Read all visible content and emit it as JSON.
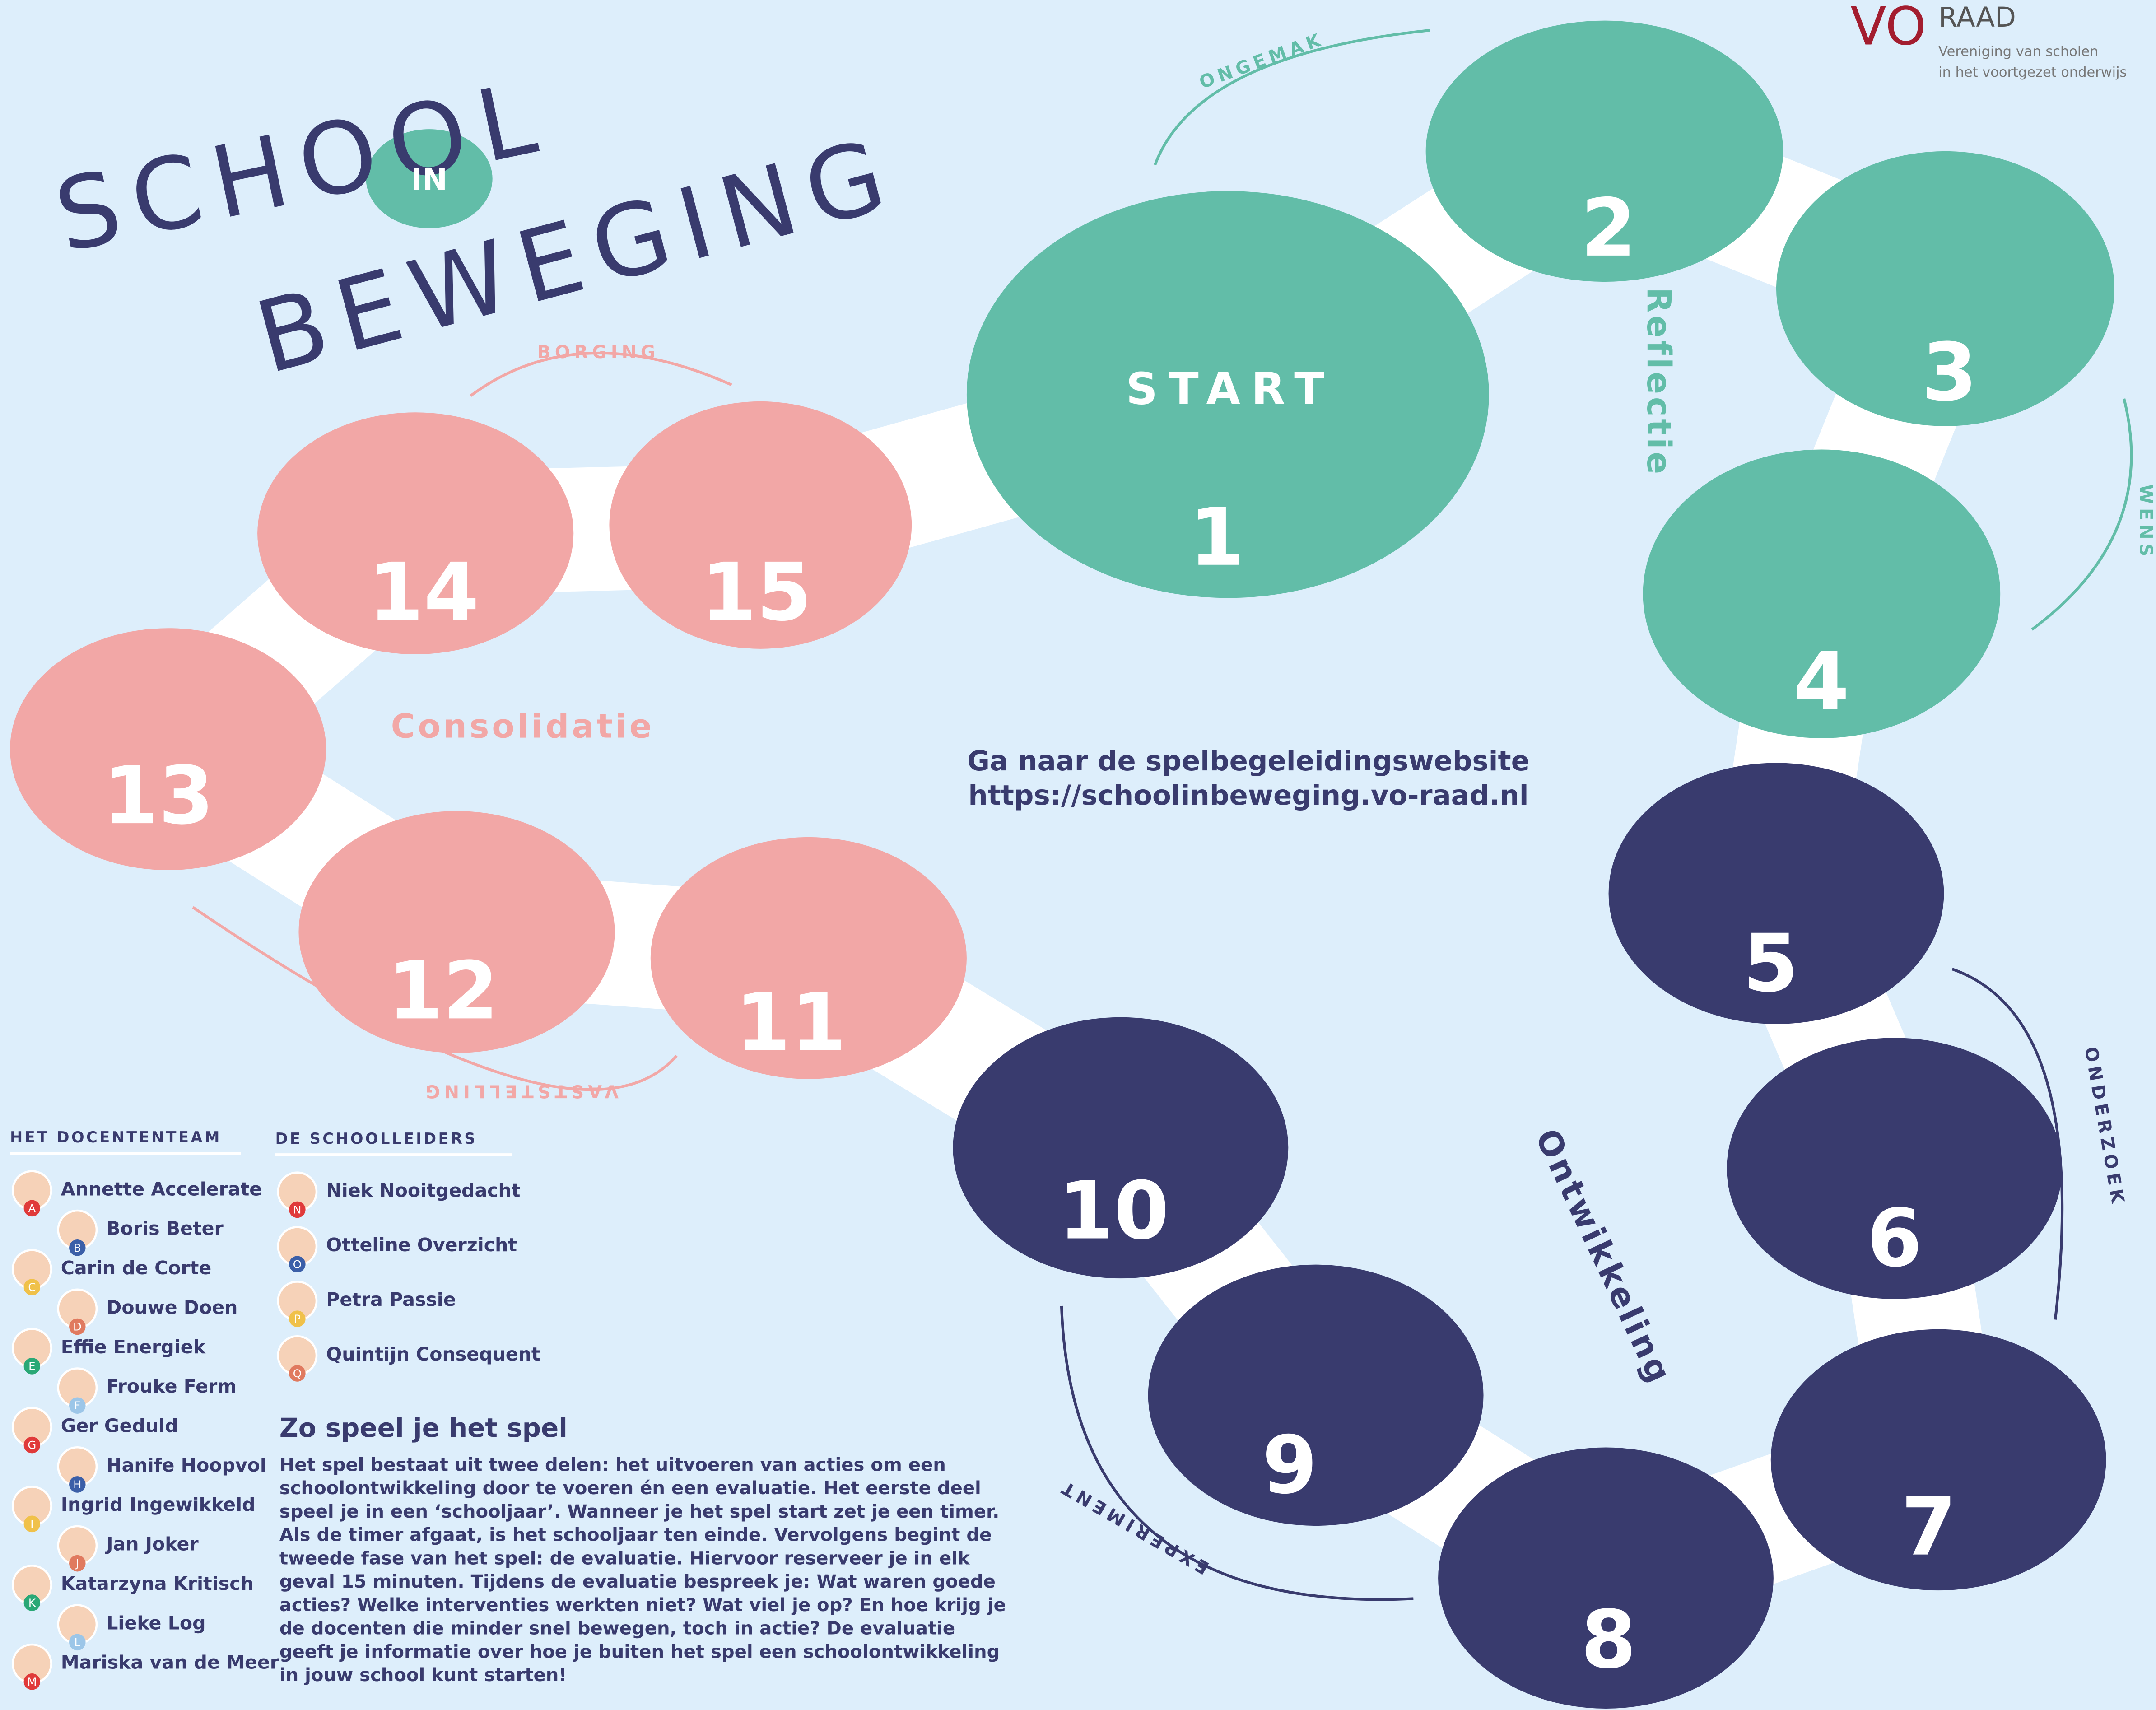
{
  "header": {
    "title_line1": "SCHOOL",
    "title_connector": "IN",
    "title_line2": "BEWEGING"
  },
  "logo": {
    "brand_vo": "VO",
    "brand_raad": "RAAD",
    "tagline_1": "Vereniging van scholen",
    "tagline_2": "in het voortgezet onderwijs"
  },
  "board": {
    "start_label": "START",
    "squares": [
      1,
      2,
      3,
      4,
      5,
      6,
      7,
      8,
      9,
      10,
      11,
      12,
      13,
      14,
      15
    ],
    "phases": [
      "Reflectie",
      "Ontwikkeling",
      "Consolidatie"
    ],
    "steps": [
      "ONGEMAK",
      "WENS",
      "ONDERZOEK",
      "EXPERIMENT",
      "VASTSTELLING",
      "BORGING"
    ]
  },
  "website": {
    "line1": "Ga naar de spelbegeleidingswebsite",
    "line2": "https://schoolinbeweging.vo-raad.nl"
  },
  "teachers": {
    "heading": "HET DOCENTENTEAM",
    "members": [
      {
        "name": "Annette Accelerate",
        "badge": "A"
      },
      {
        "name": "Boris Beter",
        "badge": "B"
      },
      {
        "name": "Carin de Corte",
        "badge": "C"
      },
      {
        "name": "Douwe Doen",
        "badge": "D"
      },
      {
        "name": "Effie Energiek",
        "badge": "E"
      },
      {
        "name": "Frouke Ferm",
        "badge": "F"
      },
      {
        "name": "Ger Geduld",
        "badge": "G"
      },
      {
        "name": "Hanife Hoopvol",
        "badge": "H"
      },
      {
        "name": "Ingrid Ingewikkeld",
        "badge": "I"
      },
      {
        "name": "Jan Joker",
        "badge": "J"
      },
      {
        "name": "Katarzyna Kritisch",
        "badge": "K"
      },
      {
        "name": "Lieke Log",
        "badge": "L"
      },
      {
        "name": "Mariska van de Meer",
        "badge": "M"
      }
    ]
  },
  "leaders": {
    "heading": "DE SCHOOLLEIDERS",
    "members": [
      {
        "name": "Niek Nooitgedacht",
        "badge": "N"
      },
      {
        "name": "Otteline Overzicht",
        "badge": "O"
      },
      {
        "name": "Petra Passie",
        "badge": "P"
      },
      {
        "name": "Quintijn Consequent",
        "badge": "Q"
      }
    ]
  },
  "instructions": {
    "heading": "Zo speel je het spel",
    "text": "Het spel bestaat uit twee delen: het uitvoeren van acties om een schoolontwikkeling door te voeren én een evaluatie. Het eerste deel speel je in een ‘schooljaar’. Wanneer je het spel start zet je een timer. Als de timer afgaat, is het schooljaar ten einde. Vervolgens begint de tweede fase van het spel: de evaluatie. Hiervoor reserveer je in elk geval 15 minuten. Tijdens de evaluatie bespreek je: Wat waren goede acties? Welke interventies werkten niet? Wat viel je op? En hoe krijg je de docenten die minder snel bewegen, toch in actie? De evaluatie geeft je informatie over hoe je buiten het spel een schoolontwikkeling in jouw school kunt starten!"
  }
}
